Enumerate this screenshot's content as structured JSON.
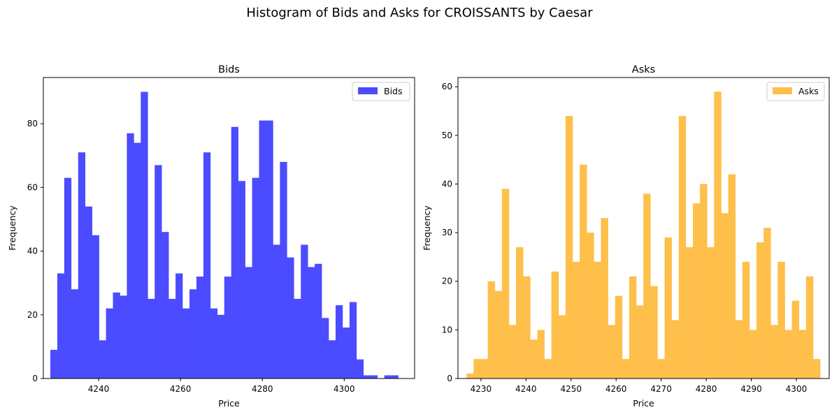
{
  "figure": {
    "suptitle": "Histogram of Bids and Asks for CROISSANTS by Caesar"
  },
  "chart_data": [
    {
      "type": "bar",
      "title": "Bids",
      "xlabel": "Price",
      "ylabel": "Frequency",
      "legend": {
        "entries": [
          "Bids"
        ],
        "position": "top-right"
      },
      "color": "#4b4bff",
      "xlim": [
        4226.5,
        4317.2
      ],
      "ylim": [
        0,
        94.5
      ],
      "x_ticks": [
        4240,
        4260,
        4280,
        4300
      ],
      "y_ticks": [
        0,
        20,
        40,
        60,
        80
      ],
      "bin_start": 4228.2,
      "bin_width": 1.7,
      "grid": false,
      "series": [
        {
          "name": "Bids",
          "values": [
            9,
            33,
            63,
            28,
            71,
            54,
            45,
            12,
            22,
            27,
            26,
            77,
            74,
            90,
            25,
            67,
            46,
            25,
            33,
            22,
            28,
            32,
            71,
            22,
            20,
            32,
            79,
            62,
            35,
            63,
            81,
            81,
            42,
            68,
            38,
            25,
            42,
            35,
            36,
            19,
            12,
            23,
            16,
            24,
            6,
            1,
            1,
            0,
            1,
            1
          ]
        }
      ]
    },
    {
      "type": "bar",
      "title": "Asks",
      "xlabel": "Price",
      "ylabel": "Frequency",
      "legend": {
        "entries": [
          "Asks"
        ],
        "position": "top-right"
      },
      "color": "#ffbf4b",
      "xlim": [
        4224.9,
        4307.3
      ],
      "ylim": [
        0,
        61.9
      ],
      "x_ticks": [
        4230,
        4240,
        4250,
        4260,
        4270,
        4280,
        4290,
        4300
      ],
      "y_ticks": [
        0,
        10,
        20,
        30,
        40,
        50,
        60
      ],
      "bin_start": 4226.8,
      "bin_width": 1.57,
      "grid": false,
      "series": [
        {
          "name": "Asks",
          "values": [
            1,
            4,
            4,
            20,
            18,
            39,
            11,
            27,
            21,
            8,
            10,
            4,
            22,
            13,
            54,
            24,
            44,
            30,
            24,
            33,
            11,
            17,
            4,
            21,
            15,
            38,
            19,
            4,
            29,
            12,
            54,
            27,
            36,
            40,
            27,
            59,
            34,
            42,
            12,
            24,
            10,
            28,
            31,
            11,
            24,
            10,
            16,
            10,
            21,
            4
          ]
        }
      ]
    }
  ]
}
